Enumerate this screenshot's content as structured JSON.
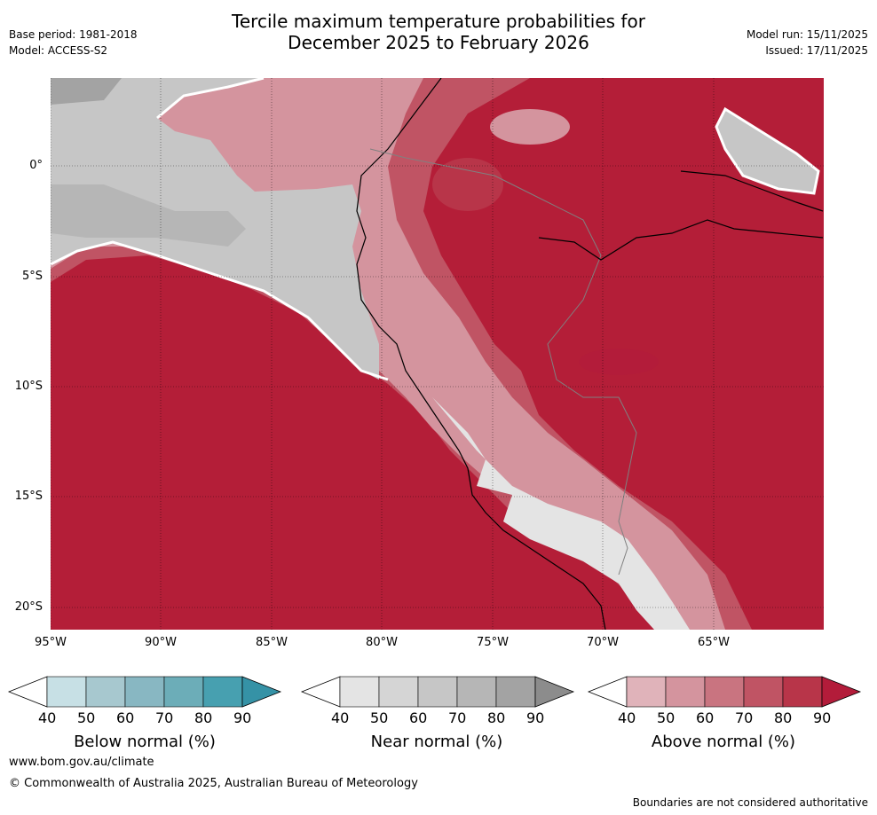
{
  "header": {
    "title_line1": "Tercile maximum temperature probabilities for",
    "title_line2": "December 2025 to February 2026",
    "base_period": "Base period: 1981-2018",
    "model": "Model: ACCESS-S2",
    "model_run": "Model run: 15/11/2025",
    "issued": "Issued: 17/11/2025"
  },
  "map": {
    "lat_labels": [
      "0°",
      "5°S",
      "10°S",
      "15°S",
      "20°S"
    ],
    "lon_labels": [
      "95°W",
      "90°W",
      "85°W",
      "80°W",
      "75°W",
      "70°W",
      "65°W"
    ]
  },
  "colorbars": [
    {
      "label": "Below normal (%)",
      "ticks": [
        "40",
        "50",
        "60",
        "70",
        "80",
        "90"
      ],
      "colors": [
        "#c7e0e5",
        "#a7c8cf",
        "#88b7c2",
        "#6cadb8",
        "#47a0b0",
        "#3592a6"
      ]
    },
    {
      "label": "Near normal (%)",
      "ticks": [
        "40",
        "50",
        "60",
        "70",
        "80",
        "90"
      ],
      "colors": [
        "#e4e4e4",
        "#d5d5d5",
        "#c6c6c6",
        "#b6b6b6",
        "#a3a3a3",
        "#8c8c8c"
      ]
    },
    {
      "label": "Above normal (%)",
      "ticks": [
        "40",
        "50",
        "60",
        "70",
        "80",
        "90"
      ],
      "colors": [
        "#e0b3ba",
        "#d4949e",
        "#c97480",
        "#c05464",
        "#b83549",
        "#b31c3a"
      ]
    }
  ],
  "footer": {
    "website": "www.bom.gov.au/climate",
    "copyright": "© Commonwealth of Australia 2025, Australian Bureau of Meteorology",
    "disclaimer": "Boundaries are not considered authoritative"
  }
}
